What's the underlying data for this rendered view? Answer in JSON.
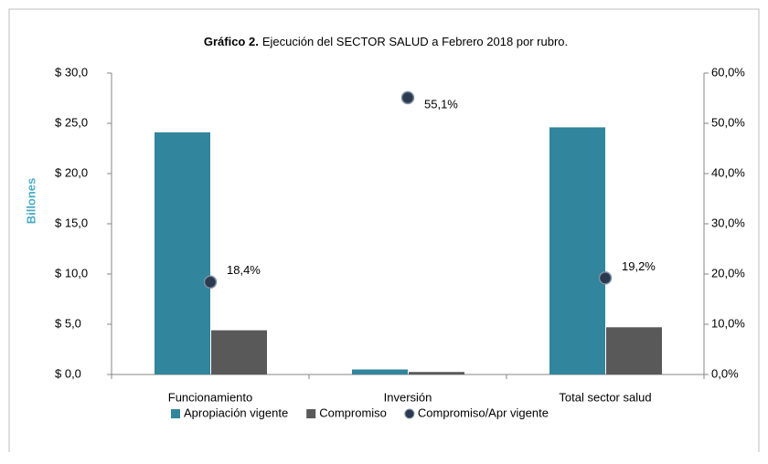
{
  "chart_data": {
    "type": "bar",
    "title_bold": "Gráfico 2.",
    "title": "Ejecución del SECTOR SALUD a Febrero 2018 por rubro.",
    "y_label": "Billones",
    "categories": [
      "Funcionamiento",
      "Inversión",
      "Total sector salud"
    ],
    "series": [
      {
        "name": "Apropiación vigente",
        "color": "#31859c",
        "type": "bar",
        "values": [
          24.1,
          0.5,
          24.6
        ]
      },
      {
        "name": "Compromiso",
        "color": "#595959",
        "type": "bar",
        "values": [
          4.4,
          0.25,
          4.7
        ]
      },
      {
        "name": "Compromiso/Apr vigente",
        "color": "#2b3a4f",
        "type": "scatter",
        "axis": "y2",
        "values": [
          18.4,
          55.1,
          19.2
        ],
        "value_labels": [
          "18,4%",
          "55,1%",
          "19,2%"
        ]
      }
    ],
    "ylim": [
      0,
      30
    ],
    "yticks": [
      {
        "value": 0,
        "label": "$ 0,0"
      },
      {
        "value": 5,
        "label": "$ 5,0"
      },
      {
        "value": 10,
        "label": "$ 10,0"
      },
      {
        "value": 15,
        "label": "$ 15,0"
      },
      {
        "value": 20,
        "label": "$ 20,0"
      },
      {
        "value": 25,
        "label": "$ 25,0"
      },
      {
        "value": 30,
        "label": "$ 30,0"
      }
    ],
    "y2lim": [
      0,
      60
    ],
    "y2ticks": [
      {
        "value": 0,
        "label": "0,0%"
      },
      {
        "value": 10,
        "label": "10,0%"
      },
      {
        "value": 20,
        "label": "20,0%"
      },
      {
        "value": 30,
        "label": "30,0%"
      },
      {
        "value": 40,
        "label": "40,0%"
      },
      {
        "value": 50,
        "label": "50,0%"
      },
      {
        "value": 60,
        "label": "60,0%"
      }
    ],
    "legend": "bottom"
  }
}
